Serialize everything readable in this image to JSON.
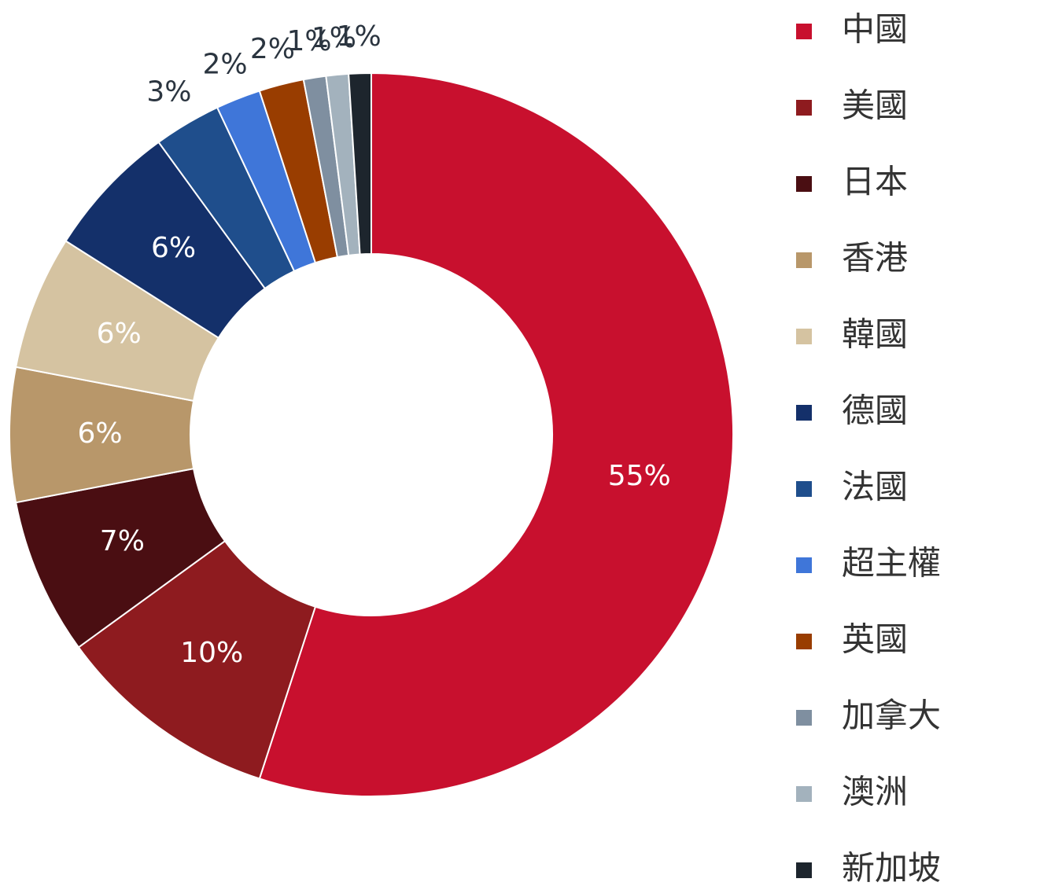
{
  "chart_data": {
    "type": "pie",
    "categories": [
      "中國",
      "美國",
      "日本",
      "香港",
      "韓國",
      "德國",
      "法國",
      "超主權",
      "英國",
      "加拿大",
      "澳洲",
      "新加坡"
    ],
    "values": [
      55,
      10,
      7,
      6,
      6,
      6,
      3,
      2,
      2,
      1,
      1,
      1
    ],
    "value_labels": [
      "55%",
      "10%",
      "7%",
      "6%",
      "6%",
      "6%",
      "3%",
      "2%",
      "2%",
      "1%",
      "1%",
      "1%"
    ],
    "colors": [
      "#c8102e",
      "#8e1b1f",
      "#4a0e12",
      "#b8976a",
      "#d5c3a1",
      "#14306a",
      "#1f4e8c",
      "#3f76d9",
      "#993d00",
      "#7f8fa0",
      "#a3b2bd",
      "#1d252d"
    ],
    "legend": "right"
  }
}
